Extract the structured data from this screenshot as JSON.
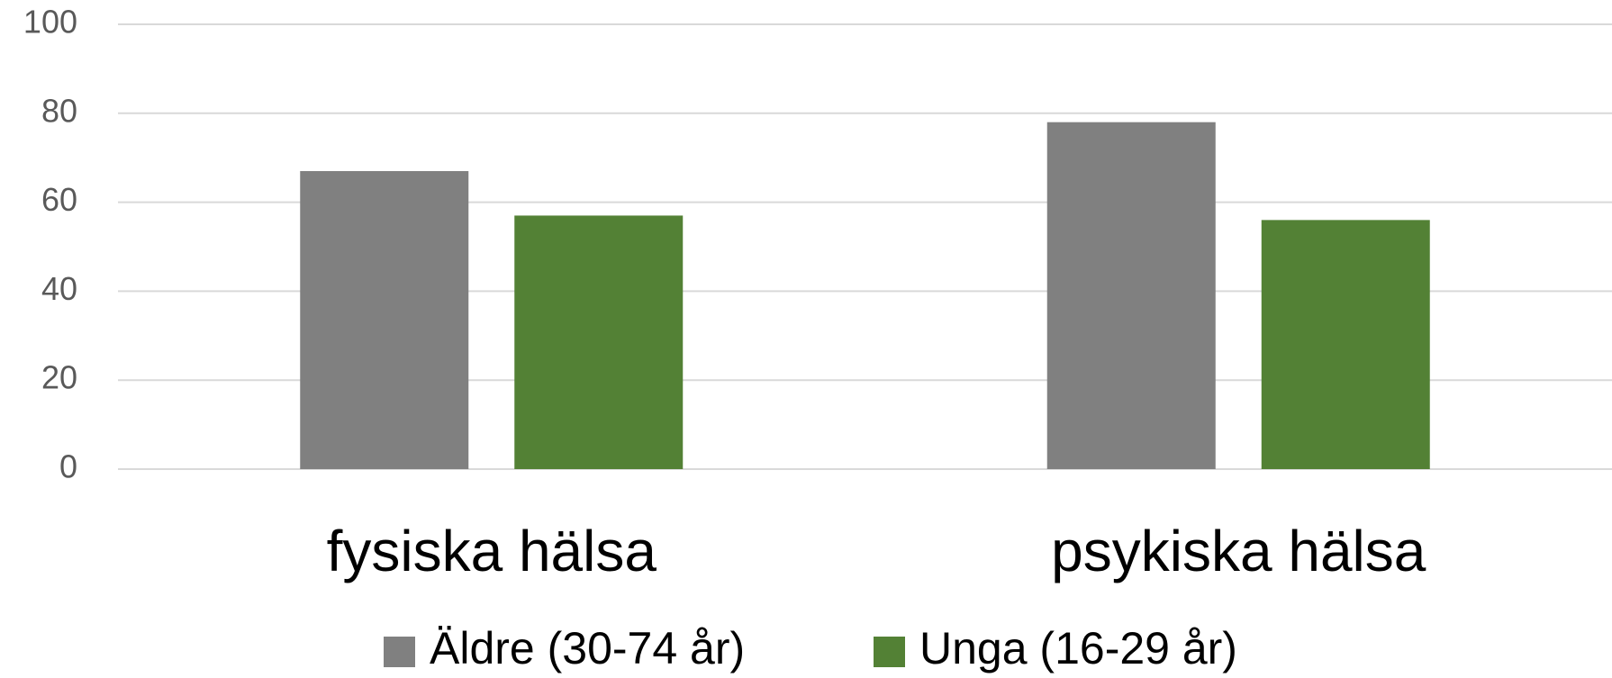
{
  "chart_data": {
    "type": "bar",
    "categories": [
      "fysiska hälsa",
      "psykiska hälsa"
    ],
    "series": [
      {
        "name": "Äldre (30-74 år)",
        "color": "#808080",
        "values": [
          67,
          78
        ]
      },
      {
        "name": "Unga (16-29 år)",
        "color": "#538135",
        "values": [
          57,
          56
        ]
      }
    ],
    "ylim": [
      0,
      100
    ],
    "yticks": [
      0,
      20,
      40,
      60,
      80,
      100
    ],
    "grid": true,
    "legend": "bottom"
  }
}
